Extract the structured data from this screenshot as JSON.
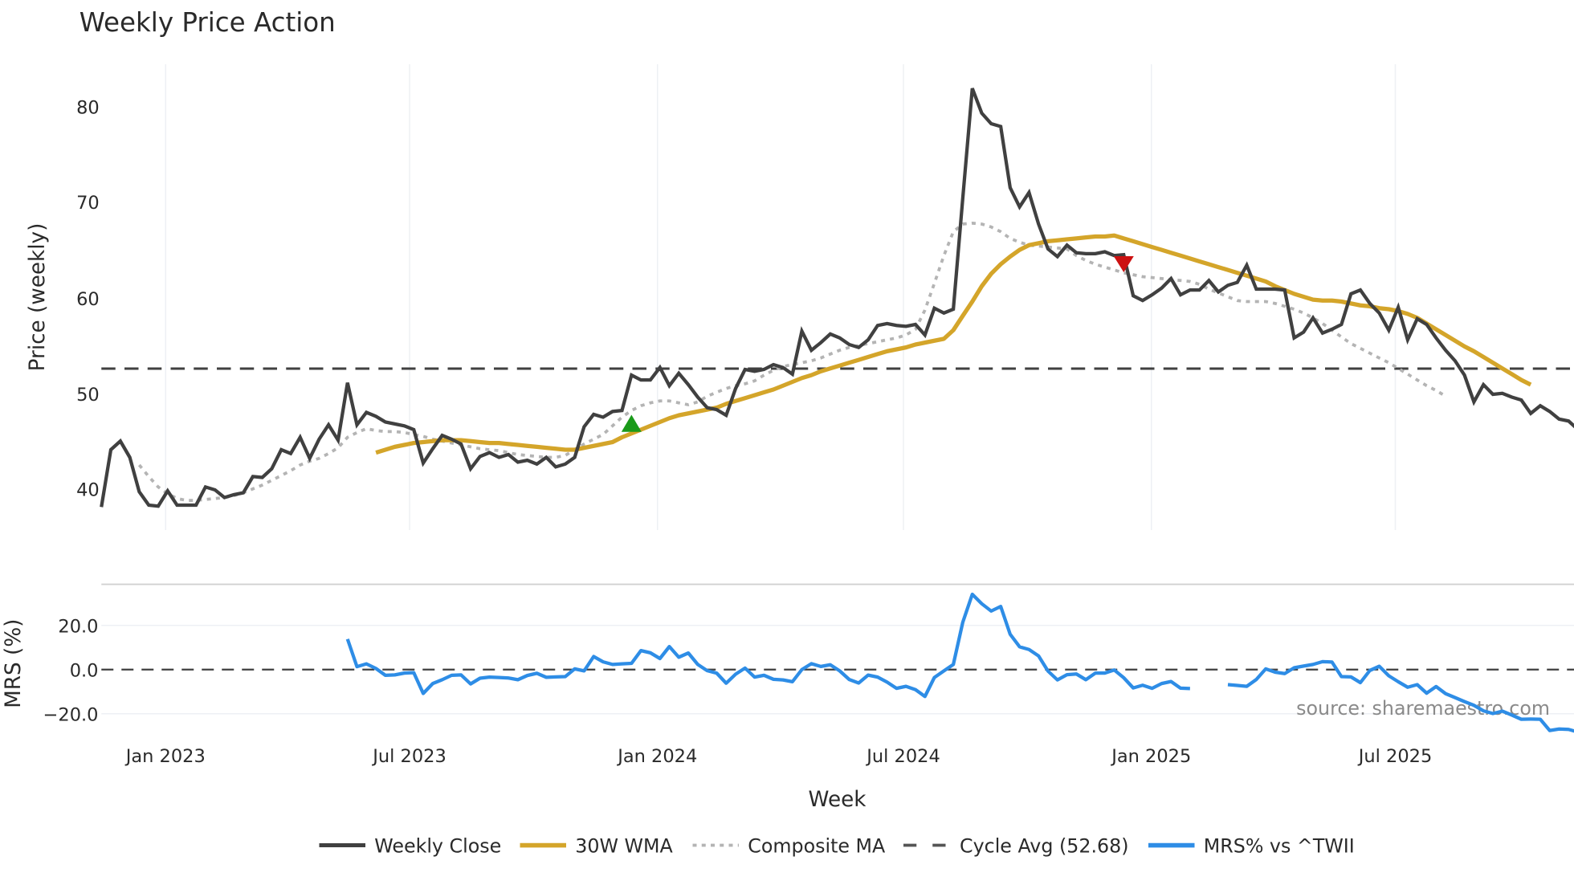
{
  "chart_data": [
    {
      "type": "line",
      "title": "Weekly Price Action",
      "xlabel": "",
      "ylabel": "Price (weekly)",
      "ylim": [
        36.5,
        84
      ],
      "yticks": [
        40,
        50,
        60,
        70,
        80
      ],
      "xticks": [
        "Jan 2023",
        "Jul 2023",
        "Jan 2024",
        "Jul 2024",
        "Jan 2025",
        "Jul 2025"
      ],
      "grid": true,
      "x_start_week": 0,
      "series": [
        {
          "name": "Weekly Close",
          "color": "#404040",
          "style": "solid",
          "start_index": 0,
          "values": [
            38.2,
            44.2,
            45.1,
            43.4,
            39.8,
            38.4,
            38.3,
            39.9,
            38.4,
            38.4,
            38.4,
            40.3,
            40.0,
            39.2,
            39.5,
            39.7,
            41.4,
            41.3,
            42.2,
            44.2,
            43.8,
            45.5,
            43.3,
            45.3,
            46.8,
            45.2,
            51.2,
            46.8,
            48.1,
            47.7,
            47.1,
            46.9,
            46.7,
            46.3,
            42.8,
            44.3,
            45.7,
            45.3,
            44.8,
            42.2,
            43.5,
            43.9,
            43.4,
            43.7,
            42.9,
            43.1,
            42.7,
            43.4,
            42.4,
            42.7,
            43.4,
            46.6,
            47.9,
            47.6,
            48.2,
            48.3,
            52.0,
            51.5,
            51.5,
            52.8,
            50.9,
            52.2,
            51.0,
            49.7,
            48.6,
            48.4,
            47.8,
            50.6,
            52.6,
            52.4,
            52.6,
            53.1,
            52.8,
            52.1,
            56.6,
            54.6,
            55.4,
            56.3,
            55.9,
            55.2,
            54.9,
            55.7,
            57.2,
            57.4,
            57.2,
            57.1,
            57.3,
            56.2,
            59.0,
            58.5,
            58.9,
            70.5,
            82.0,
            79.4,
            78.3,
            78.0,
            71.6,
            69.6,
            71.1,
            67.8,
            65.2,
            64.4,
            65.6,
            64.8,
            64.7,
            64.7,
            64.9,
            64.5,
            64.6,
            60.3,
            59.8,
            60.4,
            61.1,
            62.1,
            60.4,
            60.9,
            60.9,
            61.9,
            60.7,
            61.4,
            61.7,
            63.5,
            61.0,
            61.0,
            61.0,
            60.9,
            55.9,
            56.5,
            58.0,
            56.4,
            56.8,
            57.3,
            60.5,
            60.9,
            59.5,
            58.5,
            56.7,
            59.1,
            55.7,
            57.9,
            57.3,
            55.9,
            54.6,
            53.5,
            52.0,
            49.2,
            51.0,
            50.0,
            50.1,
            49.7,
            49.4,
            48.0,
            48.8,
            48.2,
            47.4,
            47.2,
            46.3,
            46.2
          ]
        },
        {
          "name": "30W WMA",
          "color": "#d4a52a",
          "style": "solid",
          "start_index": 29,
          "values": [
            43.9,
            44.2,
            44.5,
            44.7,
            44.9,
            45.0,
            45.1,
            45.2,
            45.2,
            45.2,
            45.1,
            45.0,
            44.9,
            44.9,
            44.8,
            44.7,
            44.6,
            44.5,
            44.4,
            44.3,
            44.2,
            44.2,
            44.4,
            44.6,
            44.8,
            45.0,
            45.5,
            45.9,
            46.3,
            46.7,
            47.1,
            47.5,
            47.8,
            48.0,
            48.2,
            48.4,
            48.6,
            49.0,
            49.3,
            49.6,
            49.9,
            50.2,
            50.5,
            50.9,
            51.3,
            51.7,
            52.0,
            52.4,
            52.7,
            53.0,
            53.3,
            53.6,
            53.9,
            54.2,
            54.5,
            54.7,
            54.9,
            55.2,
            55.4,
            55.6,
            55.8,
            56.7,
            58.2,
            59.7,
            61.3,
            62.6,
            63.6,
            64.4,
            65.1,
            65.6,
            65.8,
            66.0,
            66.1,
            66.2,
            66.3,
            66.4,
            66.5,
            66.5,
            66.6,
            66.3,
            66.0,
            65.7,
            65.4,
            65.1,
            64.8,
            64.5,
            64.2,
            63.9,
            63.6,
            63.3,
            63.0,
            62.7,
            62.4,
            62.1,
            61.8,
            61.3,
            60.9,
            60.5,
            60.2,
            59.9,
            59.8,
            59.8,
            59.7,
            59.5,
            59.3,
            59.2,
            59.0,
            58.9,
            58.7,
            58.4,
            58.0,
            57.4,
            56.8,
            56.2,
            55.6,
            55.0,
            54.5,
            53.9,
            53.3,
            52.7,
            52.1,
            51.5,
            51.0
          ]
        },
        {
          "name": "Composite MA",
          "color": "#b4b4b4",
          "style": "dotted",
          "start_index": 4,
          "values": [
            42.6,
            41.4,
            40.3,
            39.6,
            39.1,
            38.9,
            38.9,
            39.0,
            39.1,
            39.2,
            39.4,
            39.7,
            40.1,
            40.5,
            41.0,
            41.5,
            42.0,
            42.6,
            43.0,
            43.3,
            43.8,
            44.4,
            45.5,
            46.0,
            46.4,
            46.2,
            46.1,
            46.1,
            46.0,
            45.8,
            45.6,
            45.3,
            45.1,
            44.9,
            44.7,
            44.5,
            44.3,
            44.2,
            44.1,
            43.9,
            43.7,
            43.6,
            43.5,
            43.4,
            43.4,
            43.6,
            44.2,
            44.8,
            45.3,
            45.8,
            46.7,
            47.6,
            48.3,
            48.8,
            49.1,
            49.3,
            49.3,
            49.1,
            48.9,
            49.2,
            49.8,
            50.2,
            50.6,
            50.9,
            51.1,
            51.4,
            52.0,
            52.5,
            52.9,
            53.1,
            53.3,
            53.5,
            53.8,
            54.2,
            54.6,
            54.9,
            55.1,
            55.3,
            55.5,
            55.7,
            55.9,
            56.2,
            56.8,
            58.8,
            61.6,
            64.5,
            67.0,
            67.8,
            67.9,
            67.8,
            67.5,
            67.0,
            66.3,
            65.9,
            65.6,
            65.5,
            65.4,
            65.3,
            65.2,
            64.5,
            64.0,
            63.6,
            63.3,
            63.0,
            62.7,
            62.5,
            62.3,
            62.2,
            62.1,
            62.0,
            61.9,
            61.8,
            61.5,
            61.0,
            60.6,
            60.2,
            59.8,
            59.7,
            59.7,
            59.7,
            59.5,
            59.2,
            58.9,
            58.5,
            58.0,
            57.4,
            56.7,
            56.0,
            55.3,
            54.8,
            54.3,
            53.8,
            53.3,
            52.7,
            52.1,
            51.5,
            50.9,
            50.4,
            49.8
          ]
        },
        {
          "name": "Cycle Avg (52.68)",
          "color": "#404040",
          "style": "dashed",
          "value": 52.68
        }
      ],
      "markers": [
        {
          "type": "buy",
          "shape": "triangle-up",
          "color": "#1a9a1a",
          "week_index": 56,
          "value": 46.8
        },
        {
          "type": "sell",
          "shape": "triangle-down",
          "color": "#cc1111",
          "week_index": 108,
          "value": 63.6
        }
      ],
      "annotations": [
        "source: sharemaestro.com"
      ]
    },
    {
      "type": "line",
      "title": "",
      "xlabel": "Week",
      "ylabel": "MRS (%)",
      "ylim": [
        -29,
        37
      ],
      "yticks": [
        20.0,
        0.0,
        -20.0
      ],
      "ytick_labels": [
        "20.0",
        "0.0",
        "−20.0"
      ],
      "xticks": [
        "Jan 2023",
        "Jul 2023",
        "Jan 2024",
        "Jul 2024",
        "Jan 2025",
        "Jul 2025"
      ],
      "grid": true,
      "series": [
        {
          "name": "MRS% vs ^TWII",
          "color": "#2e8de6",
          "style": "solid",
          "segments": [
            {
              "start_index": 26,
              "values": [
                13.8,
                1.3,
                2.6,
                0.5,
                -2.6,
                -2.4,
                -1.6,
                -1.4,
                -10.8,
                -6.3,
                -4.6,
                -2.6,
                -2.4,
                -6.5,
                -3.9,
                -3.4,
                -3.6,
                -3.8,
                -4.6,
                -2.7,
                -1.7,
                -3.5,
                -3.3,
                -3.2,
                0.3,
                -0.6,
                5.9,
                3.5,
                2.3,
                2.6,
                2.8,
                8.6,
                7.6,
                5.0,
                10.4,
                5.6,
                7.5,
                2.3,
                -0.5,
                -1.6,
                -6.2,
                -2.1,
                0.7,
                -3.4,
                -2.6,
                -4.4,
                -4.7,
                -5.5,
                0.0,
                2.7,
                1.4,
                2.2,
                -0.6,
                -4.5,
                -6.1,
                -2.5,
                -3.4,
                -5.7,
                -8.5,
                -7.6,
                -9.1,
                -12.2,
                -3.6,
                -0.6,
                2.3,
                21.4,
                34.1,
                29.8,
                26.5,
                28.6,
                16.0,
                10.3,
                9.1,
                6.2,
                -0.7,
                -4.7,
                -2.3,
                -2.0,
                -4.6,
                -1.6,
                -1.6,
                -0.2,
                -3.7,
                -8.3,
                -7.1,
                -8.5,
                -6.3,
                -5.4,
                -8.4,
                -8.6
              ]
            },
            {
              "start_index": 119,
              "values": [
                -6.8,
                -7.2,
                -7.6,
                -4.5,
                0.3,
                -1.2,
                -1.8,
                0.8,
                1.6,
                2.3,
                3.6,
                3.4,
                -3.2,
                -3.3,
                -5.9,
                -0.4,
                1.5,
                -2.8,
                -5.5,
                -8.0,
                -6.8,
                -10.7,
                -7.7,
                -10.9,
                -12.7,
                -14.5,
                -16.2,
                -18.7,
                -19.9,
                -18.8,
                -20.6,
                -22.5,
                -22.4,
                -22.5,
                -27.6,
                -26.9,
                -27.1,
                -28.3,
                -26.8
              ]
            }
          ]
        },
        {
          "name": "Zero line",
          "color": "#404040",
          "style": "dashed",
          "value": 0
        }
      ]
    }
  ],
  "legend": {
    "position": "bottom",
    "items": [
      {
        "label": "Weekly Close",
        "color": "#404040",
        "style": "solid"
      },
      {
        "label": "30W WMA",
        "color": "#d4a52a",
        "style": "solid"
      },
      {
        "label": "Composite MA",
        "color": "#b4b4b4",
        "style": "dotted"
      },
      {
        "label": "Cycle Avg (52.68)",
        "color": "#555555",
        "style": "dashed"
      },
      {
        "label": "MRS% vs ^TWII",
        "color": "#2e8de6",
        "style": "solid"
      }
    ]
  },
  "text": {
    "title": "Weekly Price Action",
    "price_ylabel": "Price (weekly)",
    "mrs_ylabel": "MRS (%)",
    "xlabel": "Week",
    "source": "source: sharemaestro.com",
    "price_ticks": [
      "80",
      "70",
      "60",
      "50",
      "40"
    ],
    "mrs_ticks": [
      "20.0",
      "0.0",
      "−20.0"
    ],
    "x_ticks": [
      "Jan 2023",
      "Jul 2023",
      "Jan 2024",
      "Jul 2024",
      "Jan 2025",
      "Jul 2025"
    ]
  }
}
